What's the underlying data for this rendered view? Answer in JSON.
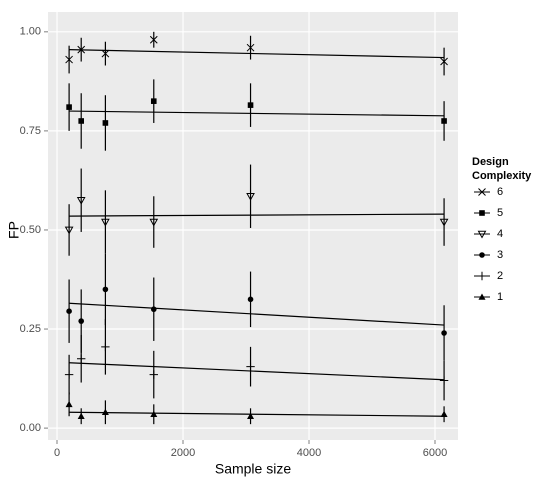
{
  "chart_data": {
    "type": "scatter",
    "x_label": "Sample size",
    "y_label": "FP",
    "legend_title": [
      "Design",
      "Complexity"
    ],
    "x": [
      192,
      384,
      768,
      1536,
      3072,
      6144
    ],
    "series": [
      {
        "name": "6",
        "shape": "cross",
        "values": [
          0.93,
          0.955,
          0.945,
          0.98,
          0.96,
          0.925
        ],
        "errors": [
          0.035,
          0.03,
          0.03,
          0.02,
          0.03,
          0.035
        ],
        "fit_x": [
          192,
          6144
        ],
        "fit_y": [
          0.955,
          0.935
        ]
      },
      {
        "name": "5",
        "shape": "square",
        "values": [
          0.81,
          0.775,
          0.77,
          0.825,
          0.815,
          0.775
        ],
        "errors": [
          0.06,
          0.07,
          0.07,
          0.055,
          0.055,
          0.05
        ],
        "fit_x": [
          192,
          6144
        ],
        "fit_y": [
          0.8,
          0.788
        ]
      },
      {
        "name": "4",
        "shape": "triangle-down-open",
        "values": [
          0.5,
          0.575,
          0.52,
          0.52,
          0.585,
          0.52
        ],
        "errors": [
          0.065,
          0.08,
          0.08,
          0.065,
          0.08,
          0.06
        ],
        "fit_x": [
          192,
          6144
        ],
        "fit_y": [
          0.535,
          0.54
        ]
      },
      {
        "name": "3",
        "shape": "circle",
        "values": [
          0.295,
          0.27,
          0.35,
          0.3,
          0.325,
          0.24
        ],
        "errors": [
          0.08,
          0.08,
          0.09,
          0.08,
          0.07,
          0.07
        ],
        "fit_x": [
          192,
          6144
        ],
        "fit_y": [
          0.315,
          0.26
        ]
      },
      {
        "name": "2",
        "shape": "plus",
        "values": [
          0.135,
          0.175,
          0.205,
          0.135,
          0.155,
          0.12
        ],
        "errors": [
          0.05,
          0.06,
          0.07,
          0.06,
          0.05,
          0.05
        ],
        "fit_x": [
          192,
          6144
        ],
        "fit_y": [
          0.165,
          0.122
        ]
      },
      {
        "name": "1",
        "shape": "triangle",
        "values": [
          0.06,
          0.03,
          0.04,
          0.035,
          0.03,
          0.035
        ],
        "errors": [
          0.03,
          0.02,
          0.03,
          0.025,
          0.02,
          0.02
        ],
        "fit_x": [
          192,
          6144
        ],
        "fit_y": [
          0.04,
          0.03
        ]
      }
    ],
    "xlim": [
      -143,
      6365
    ],
    "ylim": [
      -0.03,
      1.05
    ],
    "xticks": [
      0,
      2000,
      4000,
      6000
    ],
    "yticks": [
      {
        "value": 0,
        "label": "0.00"
      },
      {
        "value": 0.25,
        "label": "0.25"
      },
      {
        "value": 0.5,
        "label": "0.50"
      },
      {
        "value": 0.75,
        "label": "0.75"
      },
      {
        "value": 1,
        "label": "1.00"
      }
    ],
    "grid": true,
    "legend": "right",
    "color": "#000000"
  }
}
